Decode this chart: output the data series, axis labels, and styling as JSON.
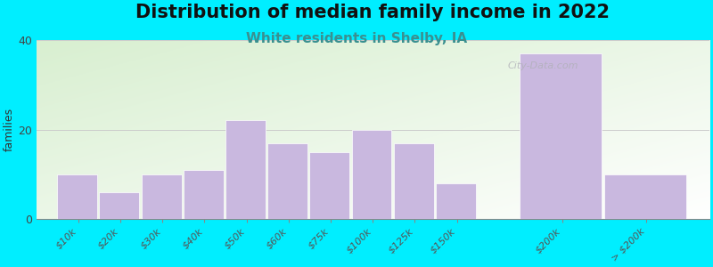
{
  "title": "Distribution of median family income in 2022",
  "subtitle": "White residents in Shelby, IA",
  "ylabel": "families",
  "categories": [
    "$10k",
    "$20k",
    "$30k",
    "$40k",
    "$50k",
    "$60k",
    "$75k",
    "$100k",
    "$125k",
    "$150k",
    "$200k",
    "> $200k"
  ],
  "values": [
    10,
    6,
    10,
    11,
    22,
    17,
    15,
    20,
    17,
    8,
    37,
    10
  ],
  "x_positions": [
    0,
    1,
    2,
    3,
    4,
    5,
    6,
    7,
    8,
    9,
    11,
    13
  ],
  "bar_widths": [
    1,
    1,
    1,
    1,
    1,
    1,
    1,
    1,
    1,
    1,
    2,
    2
  ],
  "bar_color": "#c9b8df",
  "bg_color": "#00eeff",
  "grad_color_topleft": "#d8efd0",
  "grad_color_bottomright": "#f8fef8",
  "ylim": [
    0,
    40
  ],
  "yticks": [
    0,
    20,
    40
  ],
  "xlim": [
    -0.5,
    15.5
  ],
  "title_fontsize": 15,
  "subtitle_fontsize": 11,
  "subtitle_color": "#3a9090",
  "ylabel_fontsize": 9,
  "grid_color": "#cccccc",
  "watermark": "City-Data.com"
}
